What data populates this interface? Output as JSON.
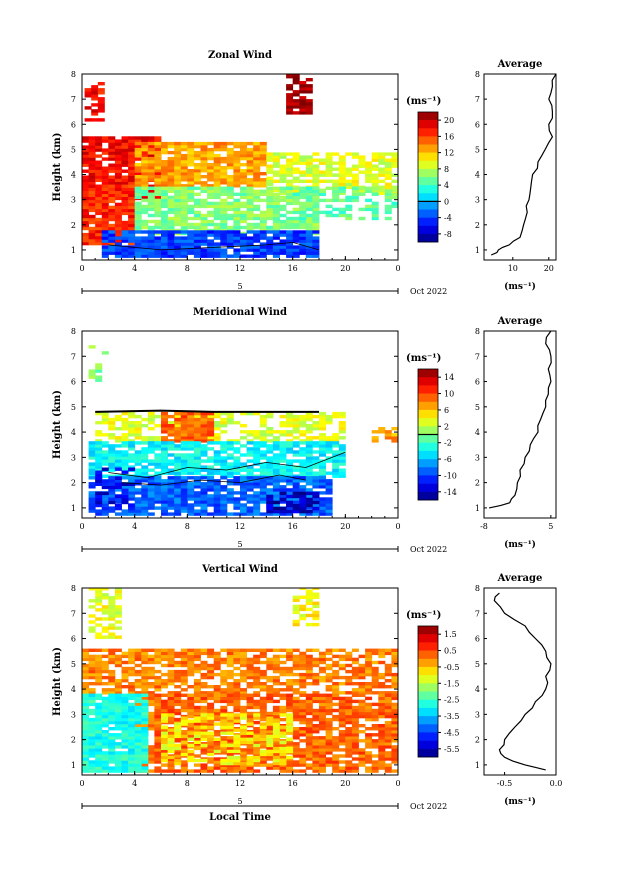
{
  "figure": {
    "x_axis_label": "Local Time",
    "month_label": "Oct 2022",
    "day_label": "5",
    "unit_label": "(ms⁻¹)",
    "average_title": "Average"
  },
  "chart_data": [
    {
      "type": "heatmap",
      "title": "Zonal Wind",
      "ylabel": "Height (km)",
      "xlabel": "",
      "x_ticks": [
        "0",
        "4",
        "8",
        "12",
        "16",
        "20",
        "0"
      ],
      "xlim": [
        0,
        24
      ],
      "ylim": [
        0.6,
        8
      ],
      "y_ticks": [
        "1",
        "2",
        "3",
        "4",
        "5",
        "6",
        "7",
        "8"
      ],
      "colorbar_ticks": [
        "20",
        "16",
        "12",
        "8",
        "4",
        "0",
        "-4",
        "-8"
      ],
      "colorbar_range": [
        -10,
        22
      ],
      "colorbar_zero_line": 0,
      "regions": [
        {
          "x0": 0.2,
          "x1": 1.6,
          "y0": 6.0,
          "y1": 7.6,
          "value": 18,
          "density": 0.55
        },
        {
          "x0": 0.0,
          "x1": 6.0,
          "y0": 3.0,
          "y1": 5.5,
          "value": 18,
          "density": 0.85
        },
        {
          "x0": 4.0,
          "x1": 14.0,
          "y0": 3.5,
          "y1": 5.2,
          "value": 13,
          "density": 0.85
        },
        {
          "x0": 14.0,
          "x1": 24.0,
          "y0": 3.2,
          "y1": 4.8,
          "value": 9,
          "density": 0.7
        },
        {
          "x0": 0.0,
          "x1": 4.0,
          "y0": 1.2,
          "y1": 3.5,
          "value": 17,
          "density": 0.9
        },
        {
          "x0": 4.0,
          "x1": 18.0,
          "y0": 1.6,
          "y1": 3.5,
          "value": 6,
          "density": 0.8
        },
        {
          "x0": 1.5,
          "x1": 18.0,
          "y0": 0.7,
          "y1": 1.7,
          "value": -4,
          "density": 0.9
        },
        {
          "x0": 16.0,
          "x1": 24.0,
          "y0": 2.2,
          "y1": 3.5,
          "value": 5,
          "density": 0.5
        },
        {
          "x0": 15.5,
          "x1": 17.5,
          "y0": 6.4,
          "y1": 8.0,
          "value": 21,
          "density": 0.75
        }
      ],
      "contours": [
        {
          "level": 0,
          "x": [
            2,
            4,
            6,
            8,
            10,
            12,
            14,
            16,
            18
          ],
          "y": [
            1.2,
            1.1,
            1.0,
            1.05,
            1.1,
            1.15,
            1.2,
            1.3,
            1.0
          ]
        }
      ],
      "average": {
        "xlim": [
          2,
          22
        ],
        "x_ticks": [
          "10",
          "20"
        ],
        "xlabel": "(ms⁻¹)",
        "y": [
          0.8,
          1.0,
          1.2,
          1.5,
          2.0,
          2.5,
          3.0,
          3.5,
          4.0,
          4.5,
          5.0,
          5.5,
          6.0,
          6.5,
          7.0,
          7.5,
          8.0
        ],
        "x": [
          4,
          6,
          9,
          12,
          13,
          14,
          14.5,
          15,
          15.5,
          17,
          19,
          21,
          20,
          21,
          20,
          21,
          22
        ]
      }
    },
    {
      "type": "heatmap",
      "title": "Meridional Wind",
      "ylabel": "Height (km)",
      "xlabel": "",
      "x_ticks": [
        "0",
        "4",
        "8",
        "12",
        "16",
        "20",
        "0"
      ],
      "xlim": [
        0,
        24
      ],
      "ylim": [
        0.6,
        8
      ],
      "y_ticks": [
        "1",
        "2",
        "3",
        "4",
        "5",
        "6",
        "7",
        "8"
      ],
      "colorbar_ticks": [
        "14",
        "10",
        "6",
        "2",
        "-2",
        "-6",
        "-10",
        "-14"
      ],
      "colorbar_range": [
        -16,
        16
      ],
      "colorbar_zero_line": 0,
      "regions": [
        {
          "x0": 1.0,
          "x1": 20.0,
          "y0": 3.6,
          "y1": 4.8,
          "value": 3,
          "density": 0.6
        },
        {
          "x0": 6.0,
          "x1": 10.0,
          "y0": 3.6,
          "y1": 4.8,
          "value": 9,
          "density": 0.85
        },
        {
          "x0": 0.5,
          "x1": 20.0,
          "y0": 2.2,
          "y1": 3.6,
          "value": -4,
          "density": 0.8
        },
        {
          "x0": 0.5,
          "x1": 19.0,
          "y0": 0.7,
          "y1": 2.2,
          "value": -9,
          "density": 0.85
        },
        {
          "x0": 1.0,
          "x1": 4.0,
          "y0": 0.8,
          "y1": 2.5,
          "value": -13,
          "density": 0.4
        },
        {
          "x0": 14.0,
          "x1": 18.0,
          "y0": 0.8,
          "y1": 1.6,
          "value": -14,
          "density": 0.6
        },
        {
          "x0": 22.0,
          "x1": 24.0,
          "y0": 3.6,
          "y1": 4.2,
          "value": 7,
          "density": 0.6
        },
        {
          "x0": 0.5,
          "x1": 1.8,
          "y0": 6.0,
          "y1": 7.5,
          "value": 0,
          "density": 0.3
        }
      ],
      "contours": [
        {
          "level": 0,
          "x": [
            1,
            6,
            10,
            14,
            18
          ],
          "y": [
            4.8,
            4.85,
            4.8,
            4.8,
            4.8
          ]
        },
        {
          "level": -6,
          "x": [
            2,
            5,
            8,
            11,
            14,
            17,
            20
          ],
          "y": [
            2.4,
            2.2,
            2.6,
            2.5,
            2.8,
            2.6,
            3.2
          ]
        },
        {
          "level": -6,
          "x": [
            3,
            6,
            9,
            12,
            15,
            17
          ],
          "y": [
            2.0,
            1.9,
            2.1,
            2.0,
            2.3,
            2.1
          ]
        }
      ],
      "average": {
        "xlim": [
          -8,
          6
        ],
        "x_ticks": [
          "-8",
          "5"
        ],
        "xlabel": "(ms⁻¹)",
        "y": [
          1.0,
          1.2,
          1.5,
          2.0,
          2.5,
          3.0,
          3.5,
          4.0,
          4.5,
          5.0,
          5.5,
          6.0,
          6.5,
          7.0,
          7.5,
          8.0
        ],
        "x": [
          -7,
          -3,
          -2,
          -1.5,
          -1,
          0,
          1,
          2.5,
          3,
          4,
          4.5,
          5,
          4.5,
          5,
          4,
          5
        ]
      }
    },
    {
      "type": "heatmap",
      "title": "Vertical Wind",
      "ylabel": "Height (km)",
      "xlabel": "Local Time",
      "x_ticks": [
        "0",
        "4",
        "8",
        "12",
        "16",
        "20",
        "0"
      ],
      "xlim": [
        0,
        24
      ],
      "ylim": [
        0.6,
        8
      ],
      "y_ticks": [
        "1",
        "2",
        "3",
        "4",
        "5",
        "6",
        "7",
        "8"
      ],
      "colorbar_ticks": [
        "1.5",
        "0.5",
        "-0.5",
        "-1.5",
        "-2.5",
        "-3.5",
        "-4.5",
        "-5.5"
      ],
      "colorbar_range": [
        -6,
        2
      ],
      "colorbar_zero_line": null,
      "regions": [
        {
          "x0": 0.5,
          "x1": 3.0,
          "y0": 6.0,
          "y1": 8.0,
          "value": -1.2,
          "density": 0.6
        },
        {
          "x0": 0.0,
          "x1": 24.0,
          "y0": 3.8,
          "y1": 5.5,
          "value": 0.0,
          "density": 0.7
        },
        {
          "x0": 4.0,
          "x1": 24.0,
          "y0": 0.7,
          "y1": 3.8,
          "value": 0.2,
          "density": 0.8
        },
        {
          "x0": 0.0,
          "x1": 5.0,
          "y0": 0.7,
          "y1": 3.8,
          "value": -2.8,
          "density": 0.9
        },
        {
          "x0": 6.0,
          "x1": 16.0,
          "y0": 1.0,
          "y1": 3.0,
          "value": -0.9,
          "density": 0.5
        },
        {
          "x0": 16.0,
          "x1": 18.0,
          "y0": 6.5,
          "y1": 8.0,
          "value": -1.0,
          "density": 0.55
        }
      ],
      "contours": [],
      "average": {
        "xlim": [
          -0.7,
          0.0
        ],
        "x_ticks": [
          "-0.5",
          "0.0"
        ],
        "xlabel": "(ms⁻¹)",
        "y": [
          0.8,
          1.0,
          1.3,
          1.6,
          2.0,
          2.5,
          3.0,
          3.5,
          4.0,
          4.5,
          5.0,
          5.5,
          6.0,
          6.5,
          7.0,
          7.5,
          7.8
        ],
        "x": [
          -0.1,
          -0.3,
          -0.5,
          -0.55,
          -0.5,
          -0.4,
          -0.3,
          -0.2,
          -0.1,
          -0.1,
          -0.05,
          -0.1,
          -0.2,
          -0.3,
          -0.5,
          -0.6,
          -0.55
        ]
      }
    }
  ]
}
